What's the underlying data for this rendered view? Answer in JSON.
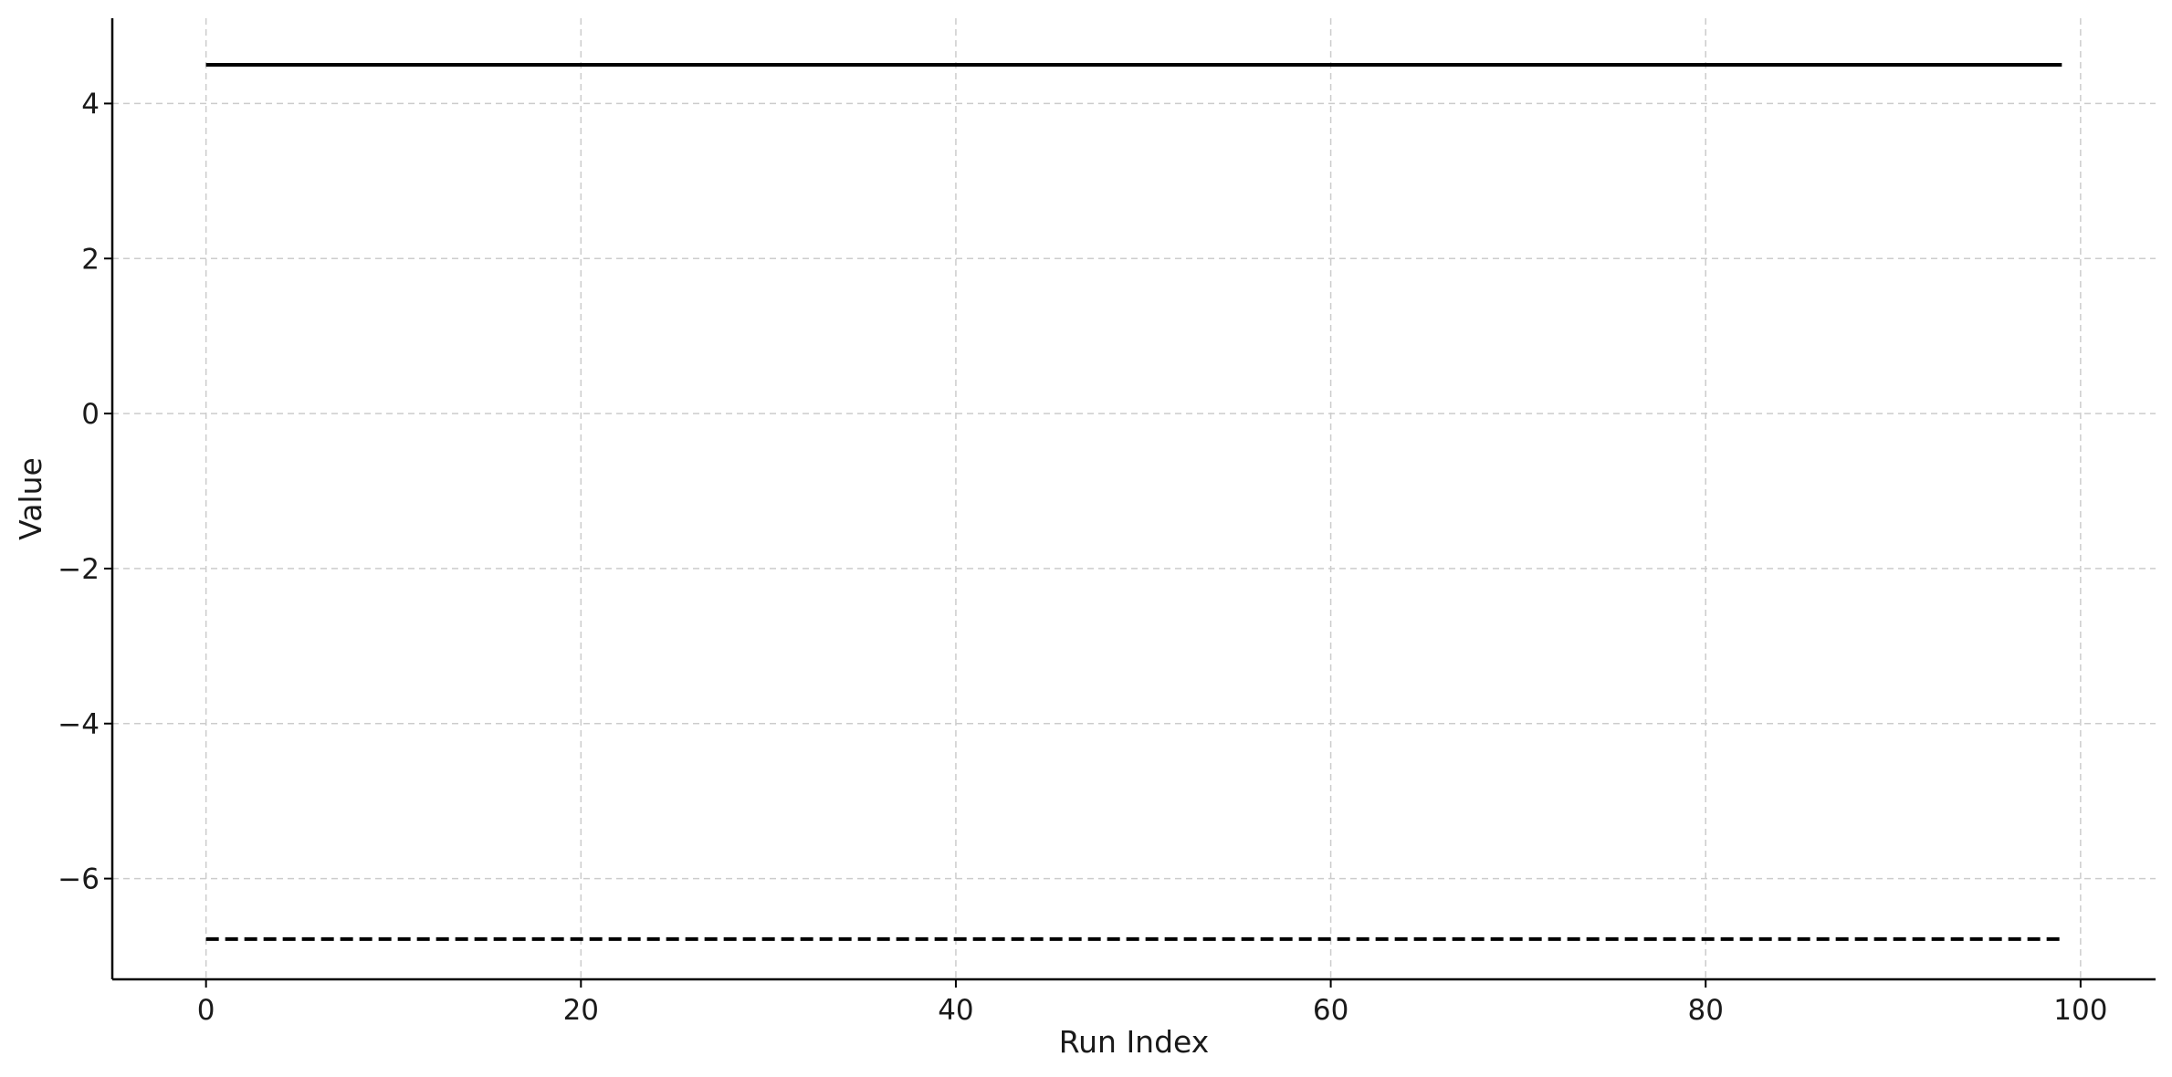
{
  "chart_data": {
    "type": "line",
    "title": "",
    "xlabel": "Run Index",
    "ylabel": "Value",
    "xlim": [
      -5,
      104
    ],
    "ylim": [
      -7.3,
      5.1
    ],
    "x_ticks": [
      0,
      20,
      40,
      60,
      80,
      100
    ],
    "y_ticks": [
      4,
      2,
      0,
      -2,
      -4,
      -6
    ],
    "x_tick_labels": [
      "0",
      "20",
      "40",
      "60",
      "80",
      "100"
    ],
    "y_tick_labels": [
      "4",
      "2",
      "0",
      "−2",
      "−4",
      "−6"
    ],
    "grid": true,
    "legend": "none",
    "series": [
      {
        "x": [
          0,
          99
        ],
        "values": [
          4.5,
          4.5
        ],
        "style": "solid",
        "color": "#000000"
      },
      {
        "x": [
          0,
          99
        ],
        "values": [
          -6.78,
          -6.78
        ],
        "style": "dashed",
        "color": "#000000"
      }
    ]
  }
}
